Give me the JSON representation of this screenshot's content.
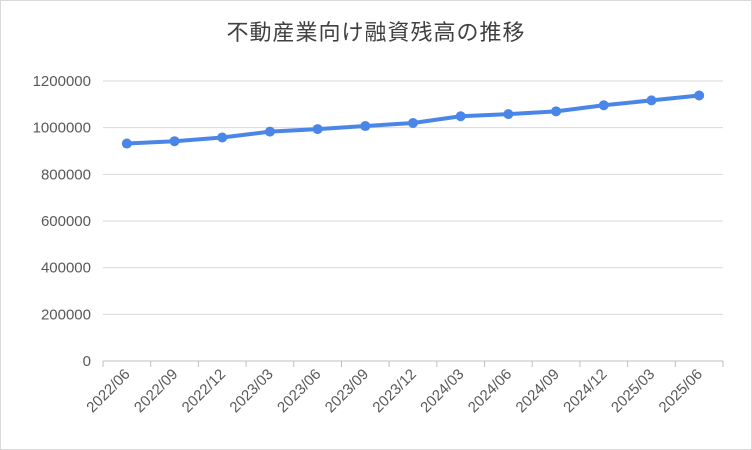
{
  "chart_data": {
    "type": "line",
    "title": "不動産業向け融資残高の推移",
    "xlabel": "",
    "ylabel": "",
    "categories": [
      "2022/06",
      "2022/09",
      "2022/12",
      "2023/03",
      "2023/06",
      "2023/09",
      "2023/12",
      "2024/03",
      "2024/06",
      "2024/09",
      "2024/12",
      "2025/03",
      "2025/06"
    ],
    "series": [
      {
        "values": [
          932000,
          942000,
          958000,
          983000,
          994000,
          1007000,
          1020000,
          1049000,
          1058000,
          1070000,
          1096000,
          1117000,
          1138000
        ]
      }
    ],
    "ylim": [
      0,
      1200000
    ],
    "yticks": [
      "0",
      "200000",
      "400000",
      "600000",
      "800000",
      "1000000",
      "1200000"
    ],
    "grid": true,
    "legend": "none",
    "colors": {
      "line": "#4a86e8",
      "grid": "#d9d9d9",
      "axis": "#bfbfbf"
    }
  }
}
